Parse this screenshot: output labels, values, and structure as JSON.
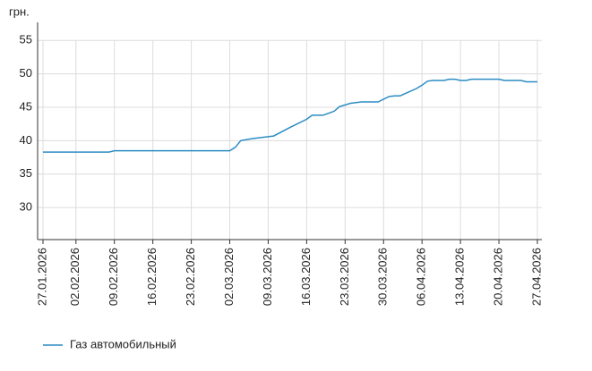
{
  "chart_data": {
    "type": "line",
    "y_label": "грн.",
    "x": [
      "27.01.2026",
      "08.02.2026",
      "09.02.2026",
      "02.03.2026",
      "03.03.2026",
      "04.03.2026",
      "06.03.2026",
      "08.03.2026",
      "09.03.2026",
      "10.03.2026",
      "13.03.2026",
      "16.03.2026",
      "17.03.2026",
      "19.03.2026",
      "21.03.2026",
      "22.03.2026",
      "24.03.2026",
      "26.03.2026",
      "29.03.2026",
      "31.03.2026",
      "01.04.2026",
      "02.04.2026",
      "05.04.2026",
      "06.04.2026",
      "07.04.2026",
      "08.04.2026",
      "10.04.2026",
      "11.04.2026",
      "12.04.2026",
      "13.04.2026",
      "14.04.2026",
      "15.04.2026",
      "20.04.2026",
      "21.04.2026",
      "24.04.2026",
      "25.04.2026",
      "27.04.2026"
    ],
    "series": [
      {
        "name": "Газ автомобильный",
        "color": "#2b8cc4",
        "values": [
          38.3,
          38.3,
          38.5,
          38.5,
          39.0,
          40.0,
          40.3,
          40.5,
          40.6,
          40.7,
          42.0,
          43.2,
          43.8,
          43.8,
          44.4,
          45.1,
          45.6,
          45.8,
          45.8,
          46.6,
          46.7,
          46.7,
          47.8,
          48.3,
          48.9,
          49.0,
          49.0,
          49.2,
          49.2,
          49.0,
          49.0,
          49.2,
          49.2,
          49.0,
          49.0,
          48.8,
          48.8
        ]
      }
    ],
    "xlim": [
      "27.01.2026",
      "27.04.2026"
    ],
    "xticks": [
      "27.01.2026",
      "02.02.2026",
      "09.02.2026",
      "16.02.2026",
      "23.02.2026",
      "02.03.2026",
      "09.03.2026",
      "16.03.2026",
      "23.03.2026",
      "30.03.2026",
      "06.04.2026",
      "13.04.2026",
      "20.04.2026",
      "27.04.2026"
    ],
    "ylim": [
      25.2,
      57.7
    ],
    "yticks": [
      30,
      35,
      40,
      45,
      50,
      55
    ],
    "grid": true
  }
}
